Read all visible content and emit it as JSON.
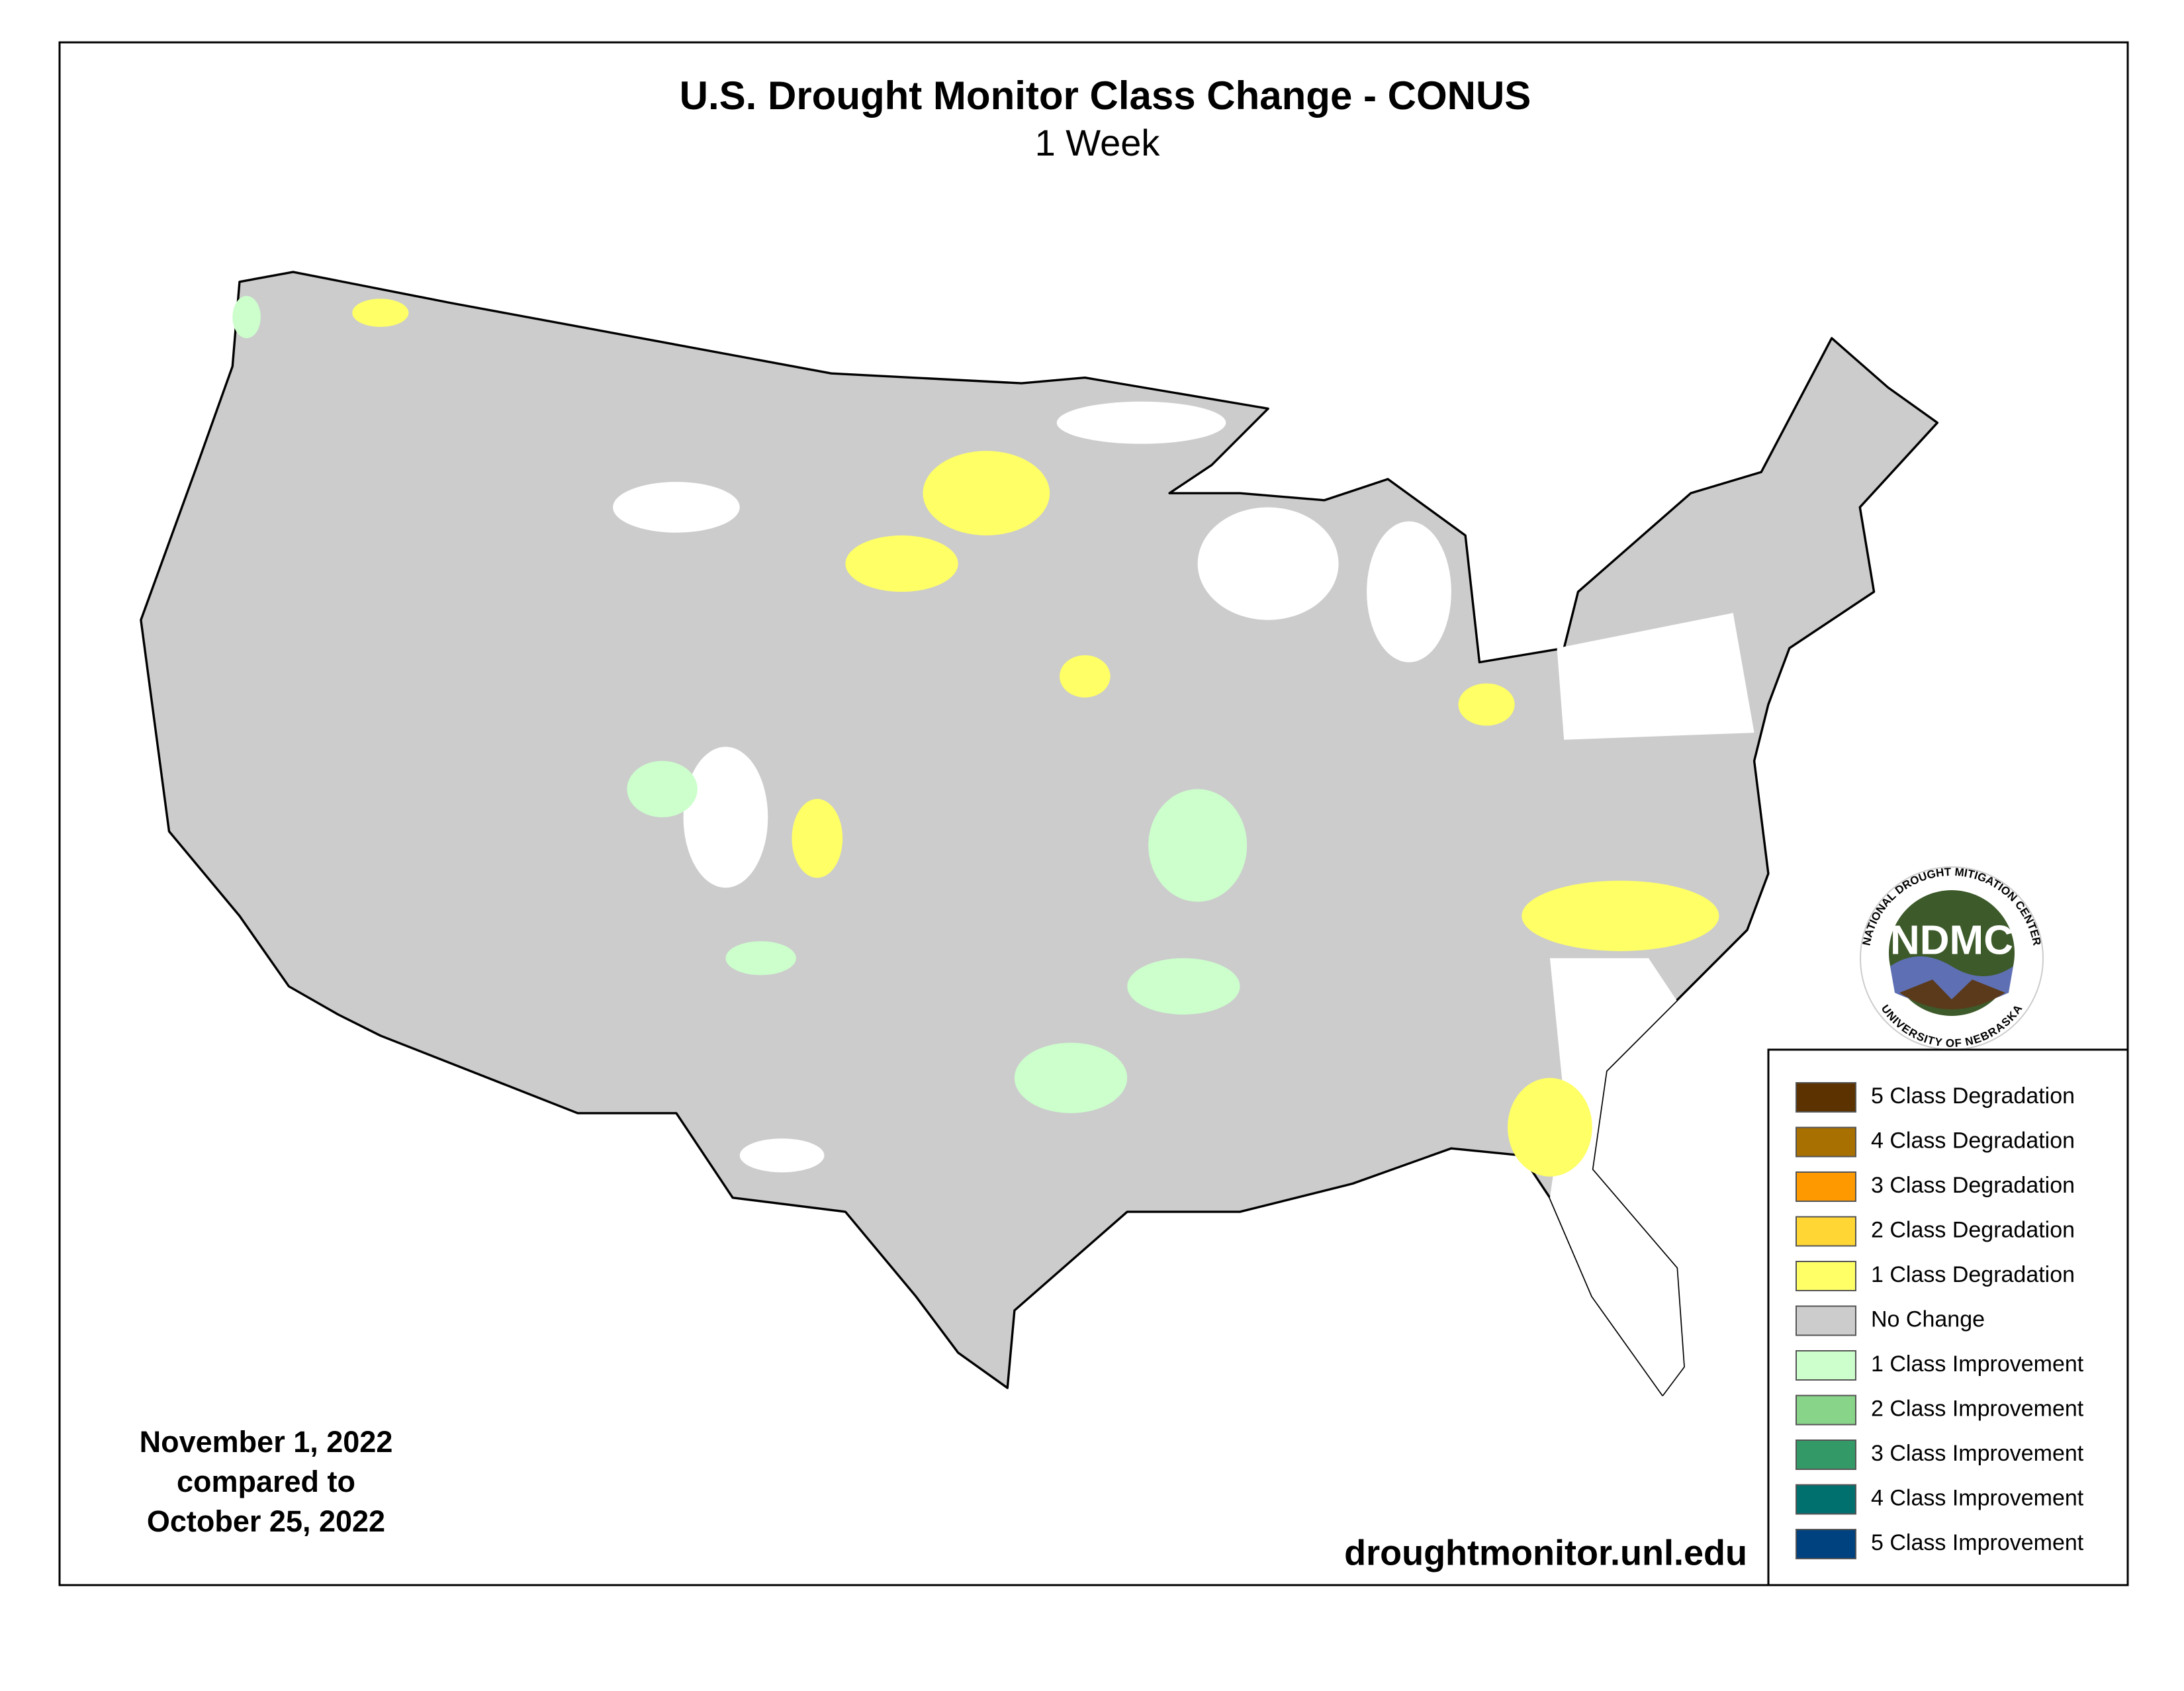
{
  "header": {
    "title": "U.S. Drought Monitor Class Change - CONUS",
    "subtitle": "1 Week"
  },
  "legend": {
    "items": [
      {
        "label": "5 Class Degradation",
        "color": "#5c3300"
      },
      {
        "label": "4 Class Degradation",
        "color": "#a87000"
      },
      {
        "label": "3 Class Degradation",
        "color": "#ff9900"
      },
      {
        "label": "2 Class Degradation",
        "color": "#ffd633"
      },
      {
        "label": "1 Class Degradation",
        "color": "#ffff66"
      },
      {
        "label": "No Change",
        "color": "#cccccc"
      },
      {
        "label": "1 Class Improvement",
        "color": "#ccffcc"
      },
      {
        "label": "2 Class Improvement",
        "color": "#88d488"
      },
      {
        "label": "3 Class Improvement",
        "color": "#339966"
      },
      {
        "label": "4 Class Improvement",
        "color": "#00706f"
      },
      {
        "label": "5 Class Improvement",
        "color": "#00417f"
      }
    ]
  },
  "dates": {
    "lines": [
      "November 1, 2022",
      "compared to",
      "October 25, 2022"
    ]
  },
  "footer": {
    "url": "droughtmonitor.unl.edu"
  },
  "logo": {
    "acronym": "NDMC",
    "arc_top": "NATIONAL DROUGHT MITIGATION CENTER",
    "arc_bottom": "UNIVERSITY OF NEBRASKA"
  }
}
